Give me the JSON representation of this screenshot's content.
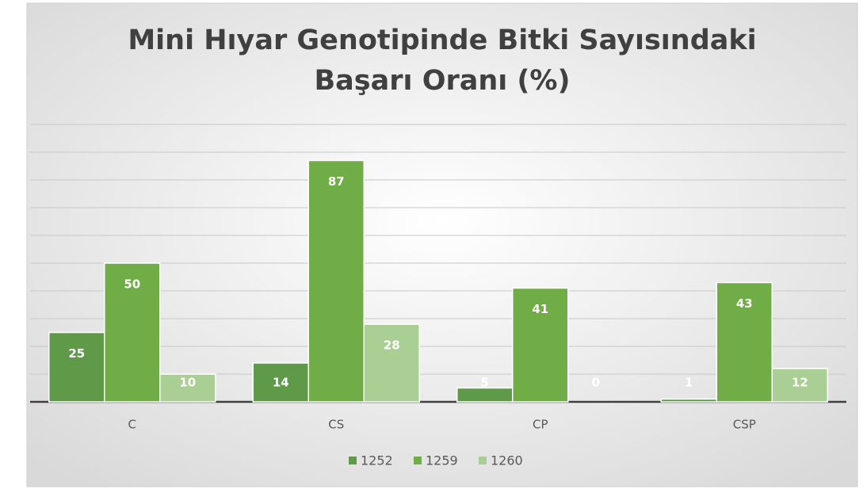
{
  "chart_data": {
    "type": "bar",
    "title_lines": [
      "Mini Hıyar Genotipinde Bitki Sayısındaki",
      "Başarı Oranı (%)"
    ],
    "categories": [
      "C",
      "CS",
      "CP",
      "CSP"
    ],
    "series": [
      {
        "name": "1252",
        "color": "#5f9a49",
        "values": [
          25,
          14,
          5,
          1
        ]
      },
      {
        "name": "1259",
        "color": "#70ad47",
        "values": [
          50,
          87,
          41,
          43
        ]
      },
      {
        "name": "1260",
        "color": "#a9cf95",
        "values": [
          10,
          28,
          0,
          12
        ]
      }
    ],
    "ylim": [
      0,
      100
    ],
    "yticks": [
      0,
      10,
      20,
      30,
      40,
      50,
      60,
      70,
      80,
      90,
      100
    ],
    "grid": true
  }
}
